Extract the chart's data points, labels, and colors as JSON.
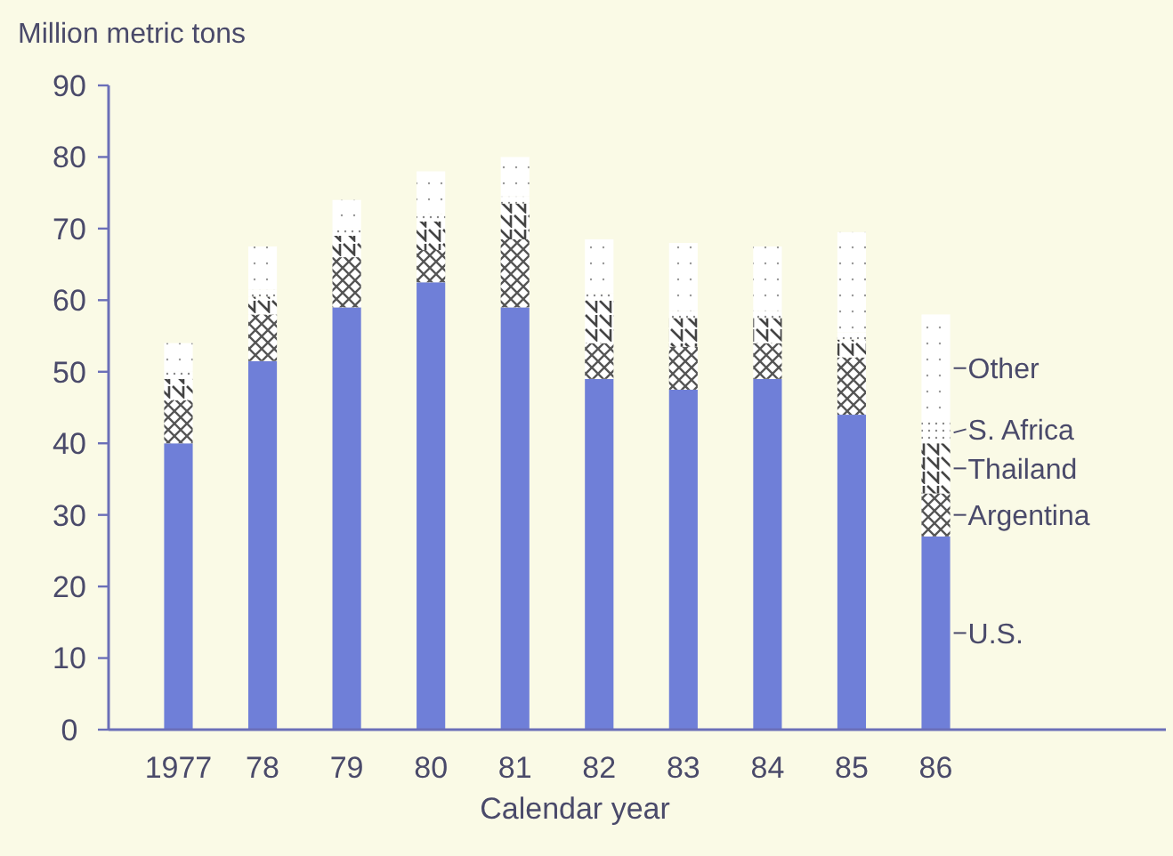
{
  "chart_data": {
    "type": "bar",
    "stacked": true,
    "ylabel": "Million metric tons",
    "xlabel": "Calendar year",
    "categories": [
      "1977",
      "78",
      "79",
      "80",
      "81",
      "82",
      "83",
      "84",
      "85",
      "86"
    ],
    "ylim": [
      0,
      90
    ],
    "yticks": [
      0,
      10,
      20,
      30,
      40,
      50,
      60,
      70,
      80,
      90
    ],
    "legend": "right",
    "grid": false,
    "series": [
      {
        "name": "U.S.",
        "color": "#6f7fd8",
        "values": [
          40,
          51.5,
          59,
          62.5,
          59,
          49,
          47.5,
          49,
          44,
          27
        ]
      },
      {
        "name": "Argentina",
        "color": "#ffffff",
        "values": [
          6,
          6.5,
          7,
          4.5,
          9.5,
          5,
          6,
          5,
          8,
          6
        ]
      },
      {
        "name": "Thailand",
        "color": "#ffffff",
        "values": [
          3,
          2.5,
          3,
          4,
          5,
          6,
          4,
          3.5,
          2.5,
          7
        ]
      },
      {
        "name": "S. Africa",
        "color": "#ffffff",
        "values": [
          1,
          1,
          1,
          1,
          1,
          1,
          1,
          1,
          1,
          3
        ]
      },
      {
        "name": "Other",
        "color": "#ffffff",
        "values": [
          4,
          6,
          4,
          6,
          5.5,
          7.5,
          9.5,
          9,
          14,
          15
        ]
      }
    ]
  }
}
